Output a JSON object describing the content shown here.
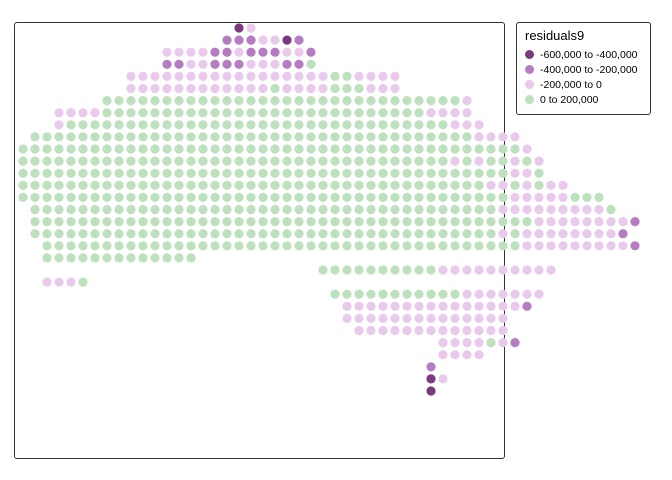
{
  "map": {
    "name": "residuals9",
    "type": "dot-grid choropleth",
    "region": "Australia"
  },
  "legend": {
    "title": "residuals9",
    "items": [
      {
        "label": "-600,000 to -400,000",
        "color": "#7b3a7f"
      },
      {
        "label": "-400,000 to -200,000",
        "color": "#b57bc3"
      },
      {
        "label": "-200,000 to 0",
        "color": "#e9caec"
      },
      {
        "label": "0 to 200,000",
        "color": "#bde0bd"
      }
    ]
  },
  "grid": {
    "rows": [
      {
        "start": 18,
        "classes": "13"
      },
      {
        "start": 17,
        "classes": "2223312"
      },
      {
        "start": 12,
        "classes": "3333223222332"
      },
      {
        "start": 12,
        "classes": "2233222333224"
      },
      {
        "start": 9,
        "classes": "33333333333333333443333"
      },
      {
        "start": 9,
        "classes": "33333333333343333444333"
      },
      {
        "start": 7,
        "classes": "4444444444444444444444444444443"
      },
      {
        "start": 3,
        "classes": "33334444444444444444444444444443333"
      },
      {
        "start": 3,
        "classes": "344444444444444444444444444444444333"
      },
      {
        "start": 1,
        "classes": "44444444444444444444444444444444444443333"
      },
      {
        "start": 0,
        "classes": "4444444444444444444444444444444444444444443"
      },
      {
        "start": 0,
        "classes": "44444444444444444444444444444444444434344343"
      },
      {
        "start": 0,
        "classes": "44444444444444444444444444444444444444444334"
      },
      {
        "start": 0,
        "classes": "4444444444444444444444444444444444444443343433"
      },
      {
        "start": 0,
        "classes": "4444444444444444444444444444444444444444433333444"
      },
      {
        "start": 1,
        "classes": "4444444444444444444444444444444444444443333333334"
      },
      {
        "start": 1,
        "classes": "444444444444444444444444444444444444444444333333332"
      },
      {
        "start": 1,
        "classes": "44444444444444444444444444444444444444434333333332"
      },
      {
        "start": 2,
        "classes": "44444444444444444444444444444444444444443333333332"
      },
      {
        "start": 2,
        "classes": "4444444444444"
      },
      {
        "start": 25,
        "classes": "44444444443333333333"
      },
      {
        "start": 2,
        "classes": "3334"
      },
      {
        "start": 26,
        "classes": "444444444443333333"
      },
      {
        "start": 27,
        "classes": "3333333333333332"
      },
      {
        "start": 27,
        "classes": "33333333333333"
      },
      {
        "start": 28,
        "classes": "3333333333333"
      },
      {
        "start": 35,
        "classes": "3333432"
      },
      {
        "start": 35,
        "classes": "3333"
      },
      {
        "start": 34,
        "classes": "2"
      },
      {
        "start": 34,
        "classes": "13"
      },
      {
        "start": 34,
        "classes": "1"
      }
    ]
  }
}
